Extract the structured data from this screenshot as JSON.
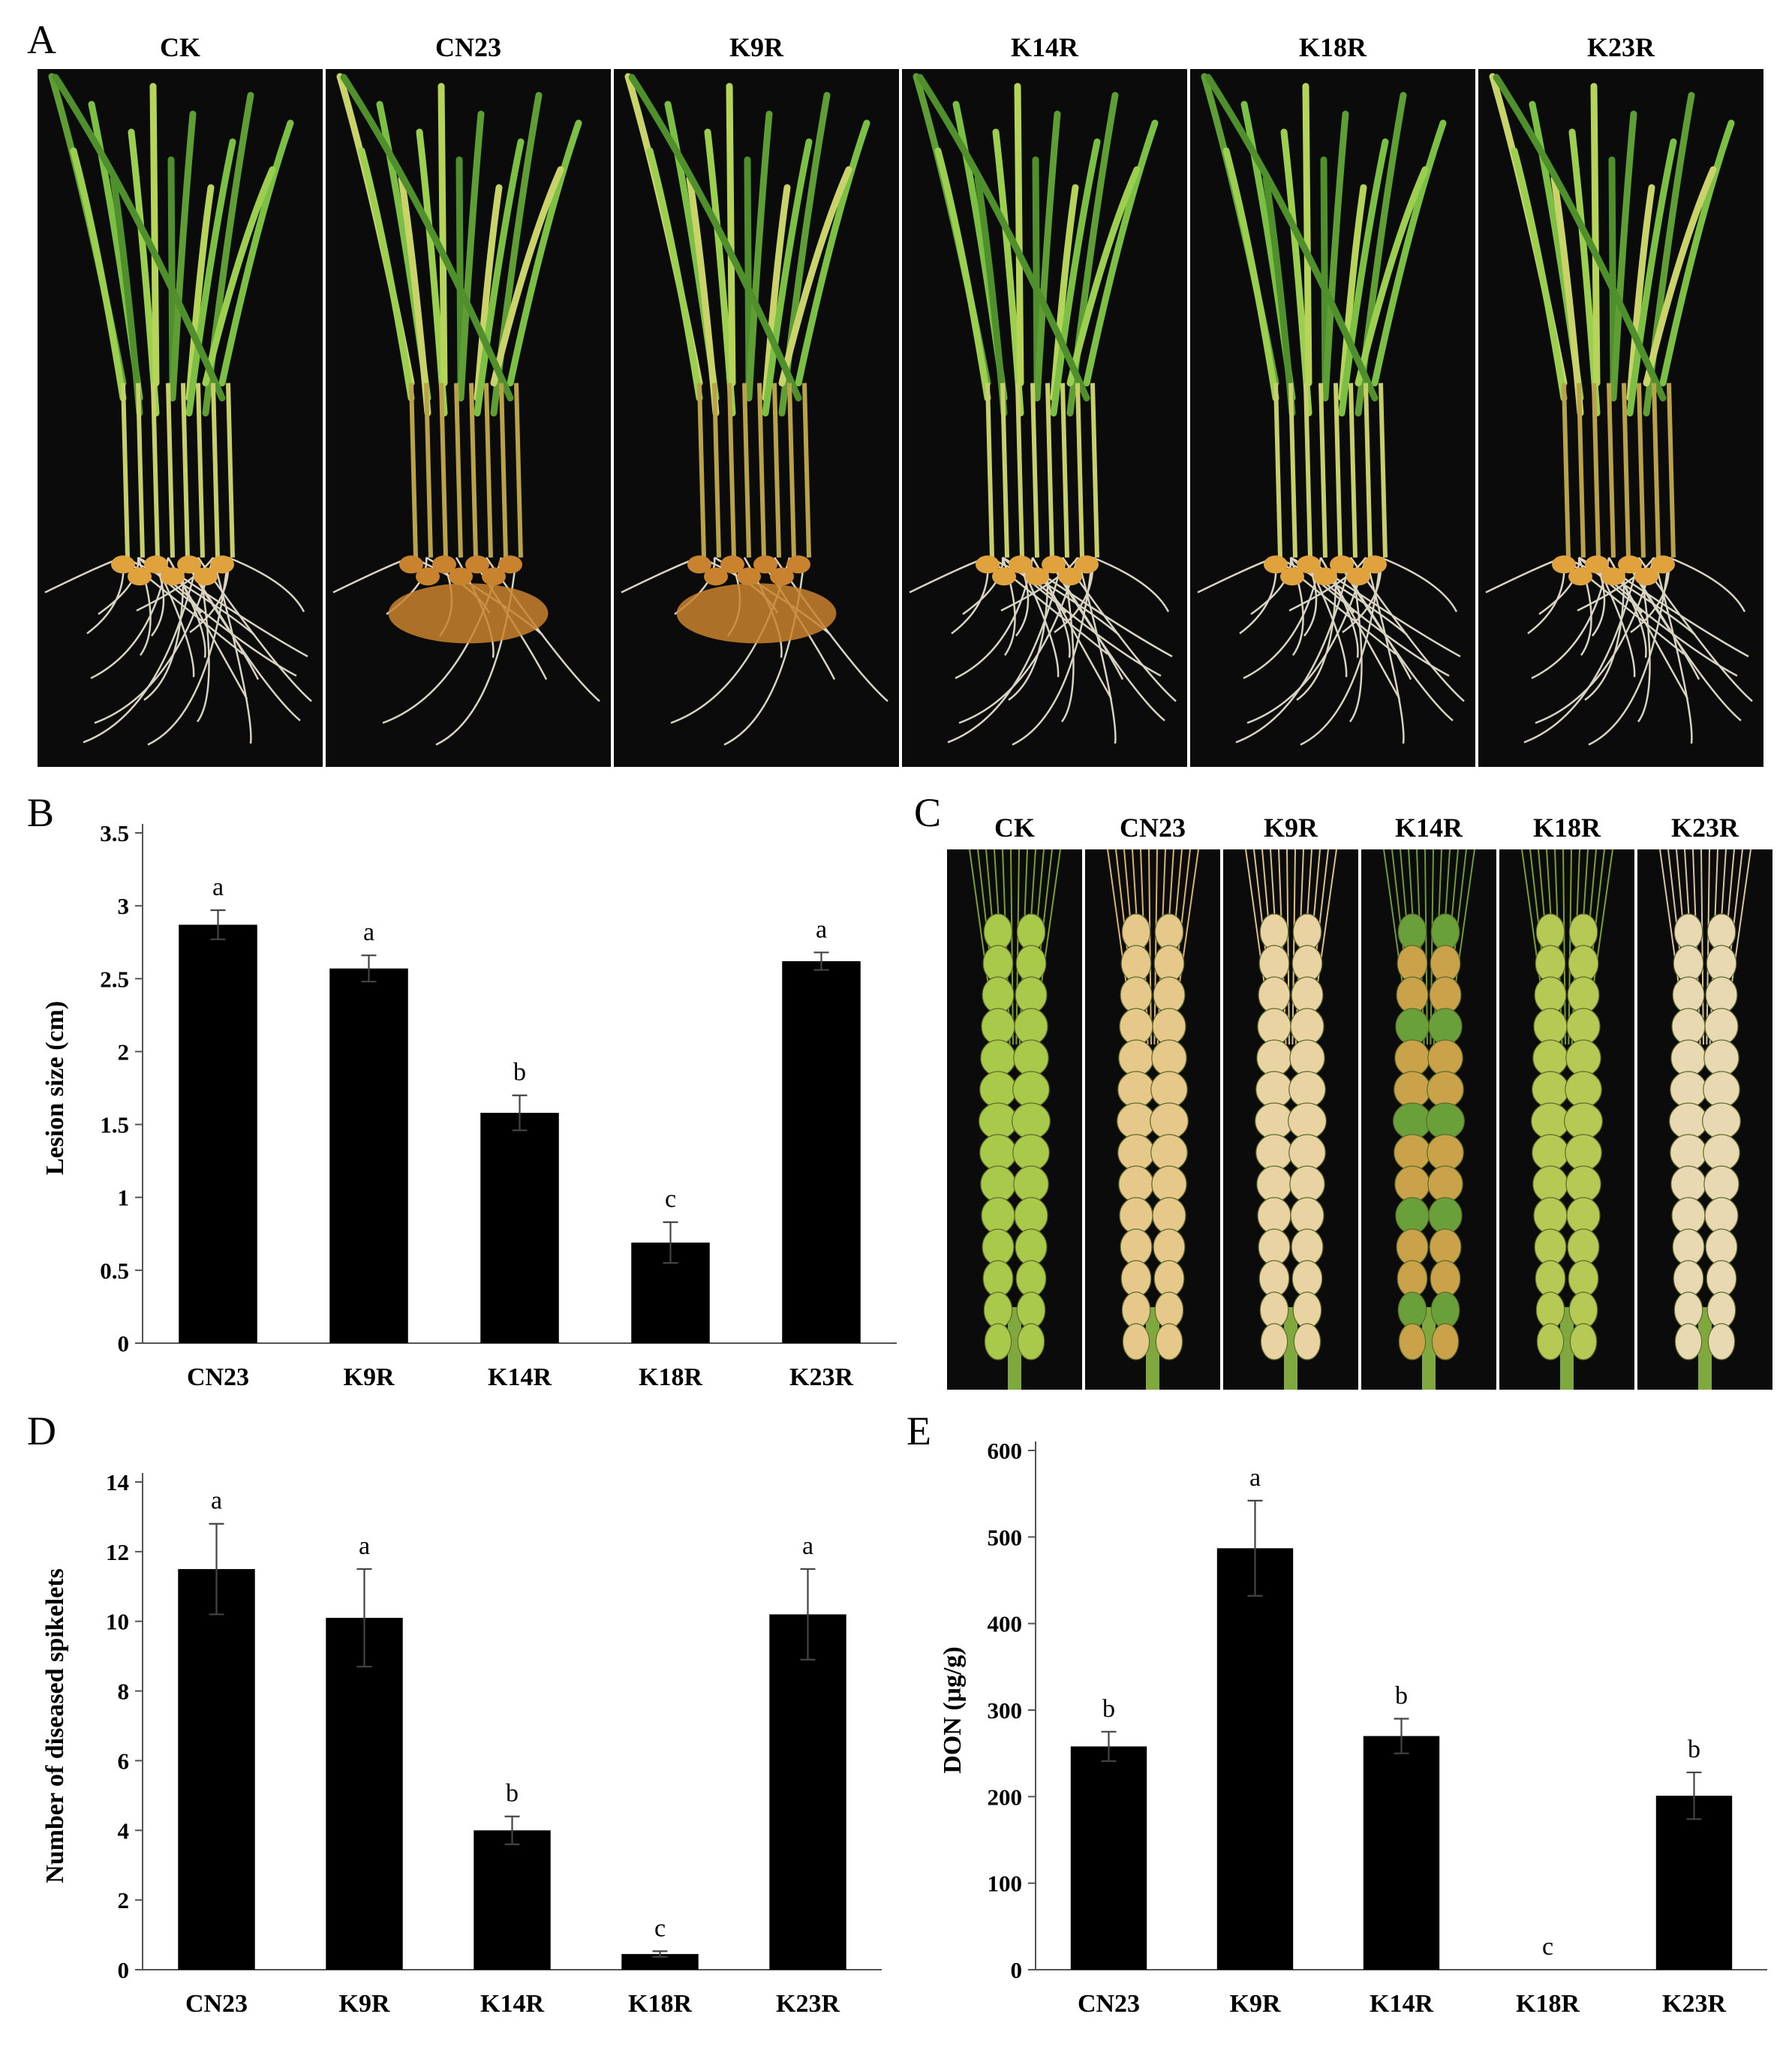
{
  "panels": {
    "a": {
      "letter": "A",
      "labels": [
        "CK",
        "CN23",
        "K9R",
        "K14R",
        "K18R",
        "K23R"
      ]
    },
    "b": {
      "letter": "B"
    },
    "c": {
      "letter": "C",
      "labels": [
        "CK",
        "CN23",
        "K9R",
        "K14R",
        "K18R",
        "K23R"
      ]
    },
    "d": {
      "letter": "D"
    },
    "e": {
      "letter": "E"
    }
  },
  "colors": {
    "bar": "#000000",
    "photo_background": "#0b0b0b",
    "healthy_leaf": "#6fae3a",
    "diseased_root": "#c9822e",
    "healthy_spike": "#a9c94a",
    "diseased_spike": "#e6c88a"
  },
  "chart_data": [
    {
      "id": "B",
      "type": "bar",
      "categories": [
        "CN23",
        "K9R",
        "K14R",
        "K18R",
        "K23R"
      ],
      "values": [
        2.87,
        2.57,
        1.58,
        0.69,
        2.62
      ],
      "errors": [
        0.1,
        0.09,
        0.12,
        0.14,
        0.06
      ],
      "letters": [
        "a",
        "a",
        "b",
        "c",
        "a"
      ],
      "ylabel": "Lesion size (cm)",
      "ylim": [
        0,
        3.5
      ],
      "yticks": [
        "0",
        "0.5",
        "1",
        "1.5",
        "2",
        "2.5",
        "3",
        "3.5"
      ],
      "grid": false
    },
    {
      "id": "D",
      "type": "bar",
      "categories": [
        "CN23",
        "K9R",
        "K14R",
        "K18R",
        "K23R"
      ],
      "values": [
        11.5,
        10.1,
        4.0,
        0.45,
        10.2
      ],
      "errors": [
        1.3,
        1.4,
        0.4,
        0.08,
        1.3
      ],
      "letters": [
        "a",
        "a",
        "b",
        "c",
        "a"
      ],
      "ylabel": "Number of diseased spikelets",
      "ylim": [
        0,
        14
      ],
      "yticks": [
        "0",
        "2",
        "4",
        "6",
        "8",
        "10",
        "12",
        "14"
      ],
      "grid": false
    },
    {
      "id": "E",
      "type": "bar",
      "categories": [
        "CN23",
        "K9R",
        "K14R",
        "K18R",
        "K23R"
      ],
      "values": [
        258,
        487,
        270,
        0,
        201
      ],
      "errors": [
        17,
        55,
        20,
        0,
        27
      ],
      "letters": [
        "b",
        "a",
        "b",
        "c",
        "b"
      ],
      "ylabel": "DON (μg/g)",
      "ylim": [
        0,
        600
      ],
      "yticks": [
        "0",
        "100",
        "200",
        "300",
        "400",
        "500",
        "600"
      ],
      "grid": false
    }
  ]
}
